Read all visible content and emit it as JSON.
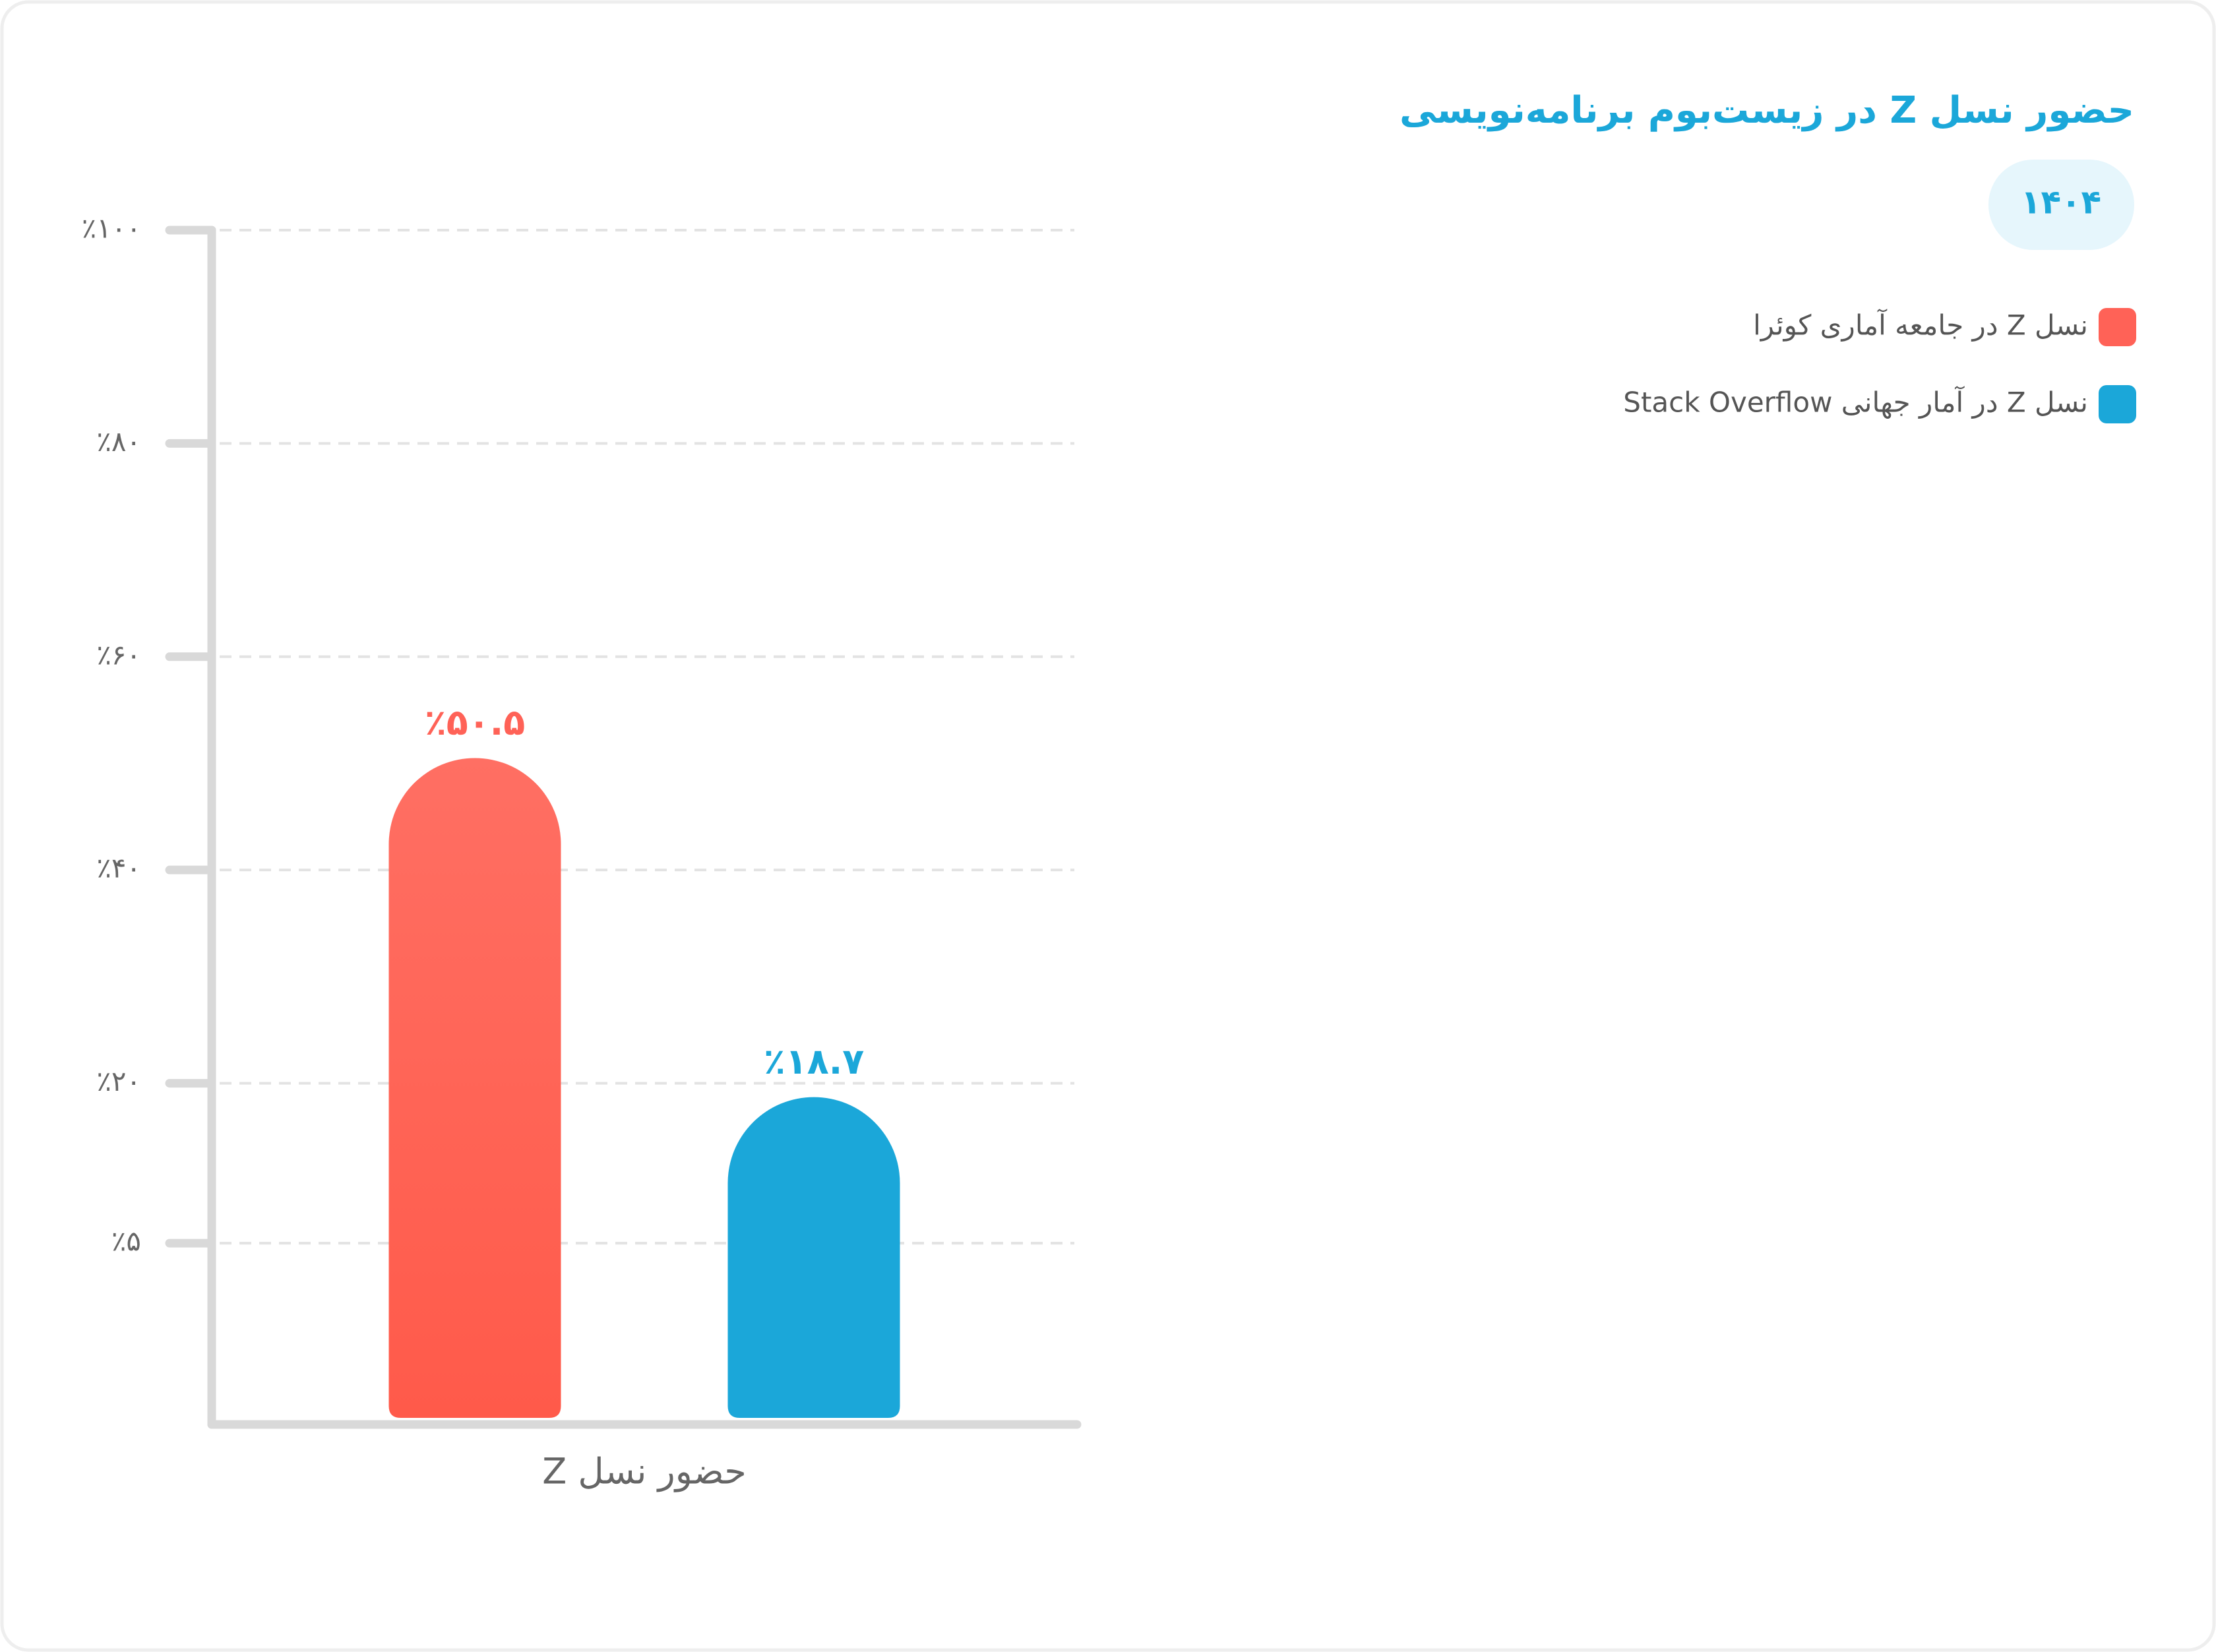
{
  "chart_data": {
    "type": "bar",
    "title": "حضور نسل Z در زیست‌بوم برنامه‌نویسی",
    "subtitle": "۱۴۰۴",
    "x_label": "حضور نسل Z",
    "categories": [
      "حضور نسل Z"
    ],
    "series": [
      {
        "name": "نسل Z  در جامعه آماری کوئرا",
        "color": "#ff6257",
        "values": [
          50.5
        ],
        "value_labels": [
          "٪۵۰.۵"
        ]
      },
      {
        "name": "نسل Z در آمار جهانی Stack Overflow",
        "color": "#1ba7d9",
        "values": [
          18.7
        ],
        "value_labels": [
          "٪۱۸.۷"
        ]
      }
    ],
    "ylim": [
      -12,
      100
    ],
    "yticks": [
      {
        "value": 100,
        "label": "٪۱۰۰"
      },
      {
        "value": 80,
        "label": "٪۸۰"
      },
      {
        "value": 60,
        "label": "٪۶۰"
      },
      {
        "value": 40,
        "label": "٪۴۰"
      },
      {
        "value": 20,
        "label": "٪۲۰"
      },
      {
        "value": 5,
        "label": "٪۵"
      }
    ],
    "grid": true,
    "legend": "top-right"
  }
}
